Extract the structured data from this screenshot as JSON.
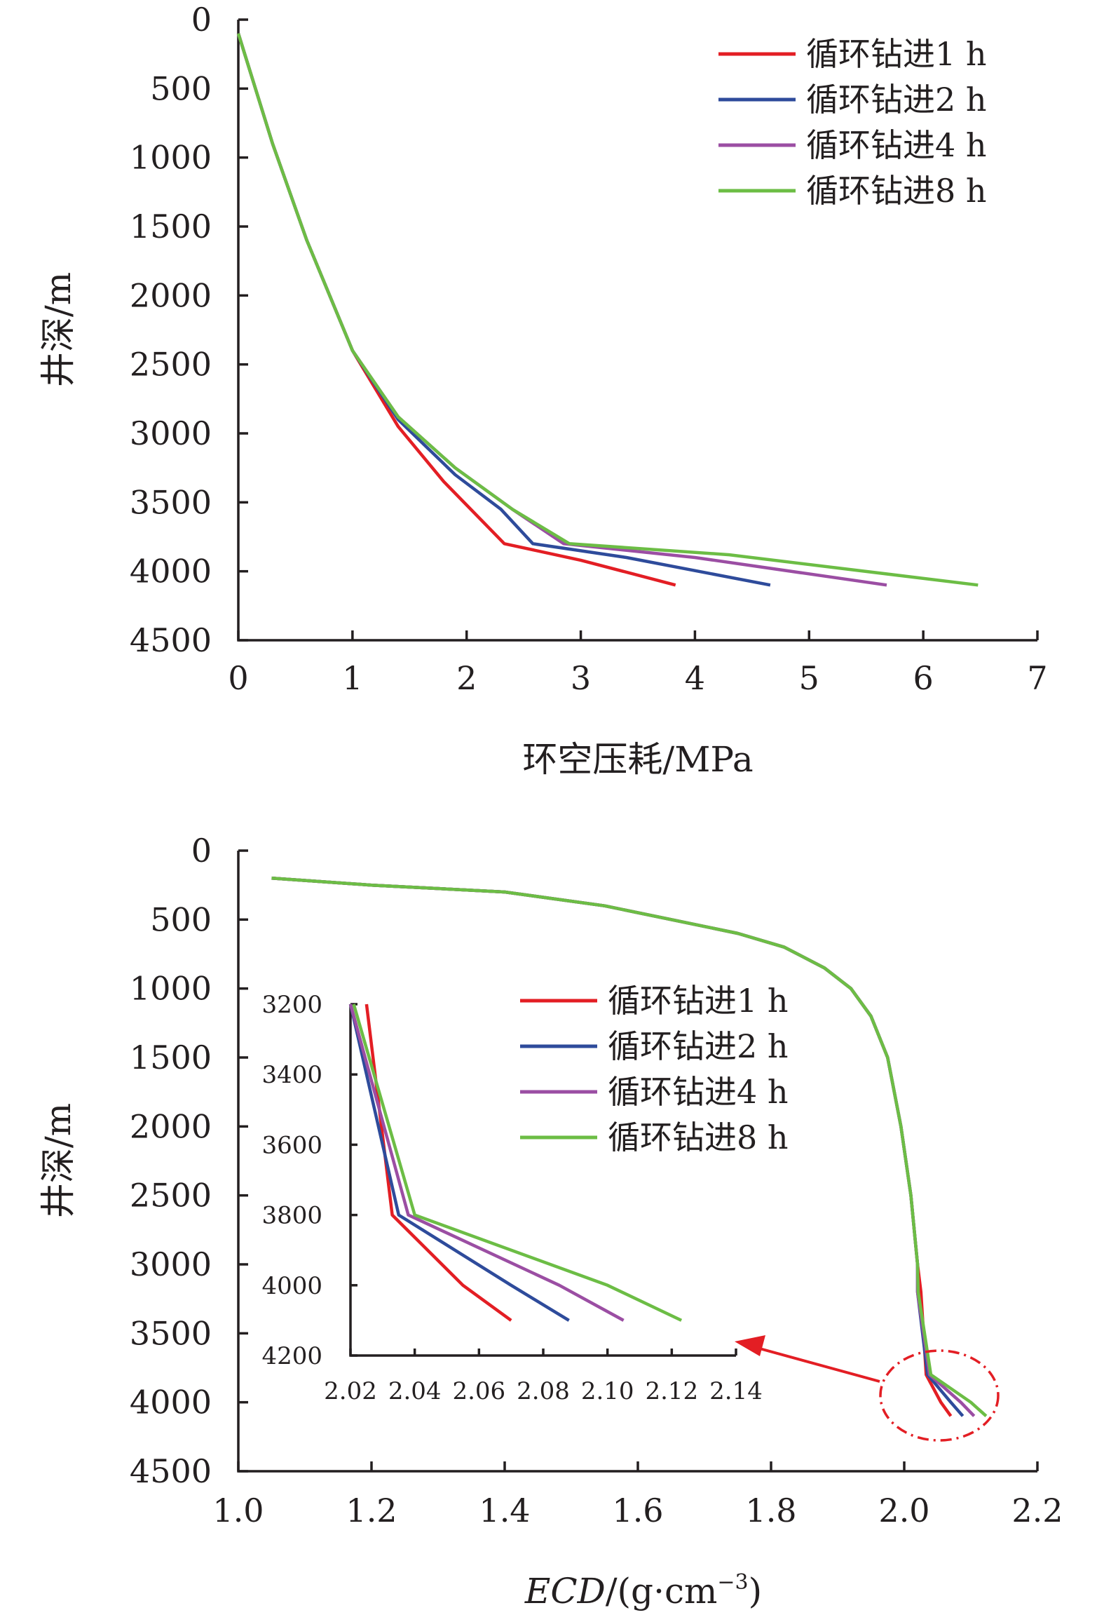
{
  "chart_data": [
    {
      "type": "line",
      "xlabel": "环空压耗/MPa",
      "ylabel": "井深/m",
      "xlim": [
        0,
        7
      ],
      "ylim": [
        0,
        4500
      ],
      "y_inverted": true,
      "xticks": [
        "0",
        "1",
        "2",
        "3",
        "4",
        "5",
        "6",
        "7"
      ],
      "yticks": [
        "0",
        "500",
        "1000",
        "1500",
        "2000",
        "2500",
        "3000",
        "3500",
        "4000",
        "4500"
      ],
      "legend_position": "top-right",
      "series": [
        {
          "name": "循环钻进1 h",
          "color": "#e31e24",
          "points": [
            [
              0.0,
              100
            ],
            [
              0.3,
              900
            ],
            [
              0.6,
              1600
            ],
            [
              1.0,
              2400
            ],
            [
              1.4,
              2950
            ],
            [
              1.8,
              3350
            ],
            [
              2.33,
              3800
            ],
            [
              3.0,
              3920
            ],
            [
              3.83,
              4100
            ]
          ]
        },
        {
          "name": "循环钻进2 h",
          "color": "#2e4b9b",
          "points": [
            [
              0.0,
              100
            ],
            [
              0.3,
              900
            ],
            [
              0.6,
              1600
            ],
            [
              1.0,
              2400
            ],
            [
              1.4,
              2900
            ],
            [
              1.9,
              3300
            ],
            [
              2.3,
              3550
            ],
            [
              2.58,
              3800
            ],
            [
              3.4,
              3900
            ],
            [
              4.66,
              4100
            ]
          ]
        },
        {
          "name": "循环钻进4 h",
          "color": "#9b4ea3",
          "points": [
            [
              0.0,
              100
            ],
            [
              0.3,
              900
            ],
            [
              0.6,
              1600
            ],
            [
              1.0,
              2400
            ],
            [
              1.4,
              2880
            ],
            [
              1.9,
              3250
            ],
            [
              2.4,
              3550
            ],
            [
              2.85,
              3800
            ],
            [
              4.0,
              3900
            ],
            [
              5.68,
              4100
            ]
          ]
        },
        {
          "name": "循环钻进8 h",
          "color": "#6cbd45",
          "points": [
            [
              0.0,
              100
            ],
            [
              0.3,
              900
            ],
            [
              0.6,
              1600
            ],
            [
              1.0,
              2400
            ],
            [
              1.4,
              2880
            ],
            [
              1.9,
              3250
            ],
            [
              2.4,
              3550
            ],
            [
              2.9,
              3800
            ],
            [
              4.3,
              3880
            ],
            [
              6.48,
              4100
            ]
          ]
        }
      ]
    },
    {
      "type": "line",
      "xlabel_italic": "ECD",
      "xlabel_rest": "/(g·cm",
      "xlabel_sup": "−3",
      "xlabel_end": ")",
      "ylabel": "井深/m",
      "xlim": [
        1.0,
        2.2
      ],
      "ylim": [
        0,
        4500
      ],
      "y_inverted": true,
      "xticks": [
        "1.0",
        "1.2",
        "1.4",
        "1.6",
        "1.8",
        "2.0",
        "2.2"
      ],
      "yticks": [
        "0",
        "500",
        "1000",
        "1500",
        "2000",
        "2500",
        "3000",
        "3500",
        "4000",
        "4500"
      ],
      "legend_position": "center",
      "series": [
        {
          "name": "循环钻进1 h",
          "color": "#e31e24",
          "points": [
            [
              1.05,
              200
            ],
            [
              1.2,
              250
            ],
            [
              1.4,
              300
            ],
            [
              1.55,
              400
            ],
            [
              1.65,
              500
            ],
            [
              1.75,
              600
            ],
            [
              1.82,
              700
            ],
            [
              1.88,
              850
            ],
            [
              1.92,
              1000
            ],
            [
              1.95,
              1200
            ],
            [
              1.975,
              1500
            ],
            [
              1.995,
              2000
            ],
            [
              2.01,
              2500
            ],
            [
              2.02,
              3000
            ],
            [
              2.025,
              3200
            ],
            [
              2.033,
              3800
            ],
            [
              2.055,
              4000
            ],
            [
              2.07,
              4100
            ]
          ]
        },
        {
          "name": "循环钻进2 h",
          "color": "#2e4b9b",
          "points": [
            [
              1.05,
              200
            ],
            [
              1.2,
              250
            ],
            [
              1.4,
              300
            ],
            [
              1.55,
              400
            ],
            [
              1.65,
              500
            ],
            [
              1.75,
              600
            ],
            [
              1.82,
              700
            ],
            [
              1.88,
              850
            ],
            [
              1.92,
              1000
            ],
            [
              1.95,
              1200
            ],
            [
              1.975,
              1500
            ],
            [
              1.995,
              2000
            ],
            [
              2.01,
              2500
            ],
            [
              2.02,
              3000
            ],
            [
              2.02,
              3200
            ],
            [
              2.035,
              3800
            ],
            [
              2.07,
              4000
            ],
            [
              2.088,
              4100
            ]
          ]
        },
        {
          "name": "循环钻进4 h",
          "color": "#9b4ea3",
          "points": [
            [
              1.05,
              200
            ],
            [
              1.2,
              250
            ],
            [
              1.4,
              300
            ],
            [
              1.55,
              400
            ],
            [
              1.65,
              500
            ],
            [
              1.75,
              600
            ],
            [
              1.82,
              700
            ],
            [
              1.88,
              850
            ],
            [
              1.92,
              1000
            ],
            [
              1.95,
              1200
            ],
            [
              1.975,
              1500
            ],
            [
              1.995,
              2000
            ],
            [
              2.01,
              2500
            ],
            [
              2.02,
              3000
            ],
            [
              2.02,
              3200
            ],
            [
              2.038,
              3800
            ],
            [
              2.085,
              4000
            ],
            [
              2.105,
              4100
            ]
          ]
        },
        {
          "name": "循环钻进8 h",
          "color": "#6cbd45",
          "points": [
            [
              1.05,
              200
            ],
            [
              1.2,
              250
            ],
            [
              1.4,
              300
            ],
            [
              1.55,
              400
            ],
            [
              1.65,
              500
            ],
            [
              1.75,
              600
            ],
            [
              1.82,
              700
            ],
            [
              1.88,
              850
            ],
            [
              1.92,
              1000
            ],
            [
              1.95,
              1200
            ],
            [
              1.975,
              1500
            ],
            [
              1.995,
              2000
            ],
            [
              2.01,
              2500
            ],
            [
              2.02,
              3000
            ],
            [
              2.021,
              3200
            ],
            [
              2.04,
              3800
            ],
            [
              2.1,
              4000
            ],
            [
              2.123,
              4100
            ]
          ]
        }
      ],
      "inset": {
        "xlim": [
          2.02,
          2.14
        ],
        "ylim": [
          3200,
          4200
        ],
        "xticks": [
          "2.02",
          "2.04",
          "2.06",
          "2.08",
          "2.10",
          "2.12",
          "2.14"
        ],
        "yticks": [
          "3200",
          "3400",
          "3600",
          "3800",
          "4000",
          "4200"
        ],
        "arrow_color": "#e31e24",
        "circle_color": "#e31e24"
      }
    }
  ]
}
